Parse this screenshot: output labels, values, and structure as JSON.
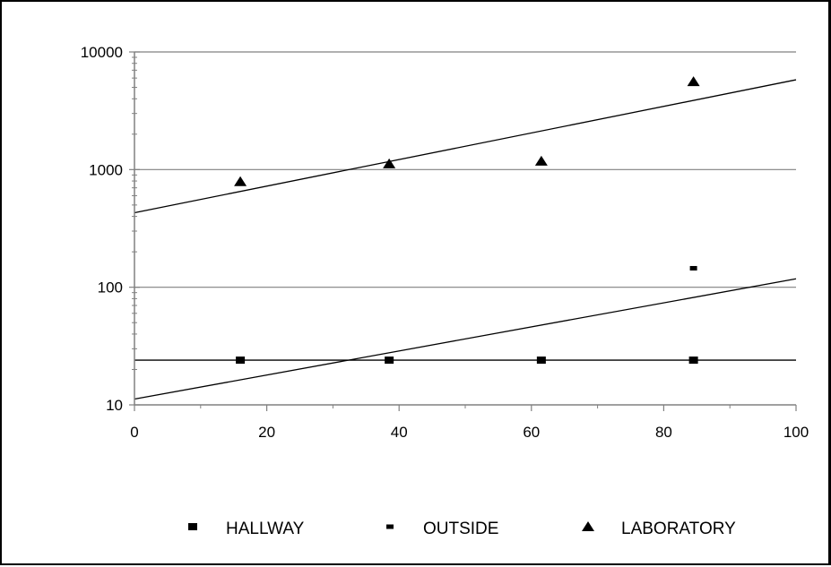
{
  "chart_data": {
    "type": "scatter",
    "title": "",
    "xlabel": "",
    "ylabel": "",
    "xlim": [
      0,
      100
    ],
    "ylim": [
      10,
      10000
    ],
    "yscale": "log",
    "x_ticks": [
      0,
      20,
      40,
      60,
      80,
      100
    ],
    "y_ticks": [
      10,
      100,
      1000,
      10000
    ],
    "x_tick_labels": [
      "0",
      "20",
      "40",
      "60",
      "80",
      "100"
    ],
    "y_tick_labels": [
      "10",
      "100",
      "1000",
      "10000"
    ],
    "grid": "horizontal",
    "legend_position": "bottom",
    "series": [
      {
        "name": "HALLWAY",
        "marker": "square",
        "x": [
          16,
          38.5,
          61.5,
          84.5
        ],
        "y": [
          24,
          24,
          24,
          24
        ]
      },
      {
        "name": "OUTSIDE",
        "marker": "dash",
        "x": [
          84.5
        ],
        "y": [
          145
        ]
      },
      {
        "name": "LABORATORY",
        "marker": "triangle",
        "x": [
          16,
          38.5,
          61.5,
          84.5
        ],
        "y": [
          790,
          1120,
          1180,
          5600
        ]
      }
    ],
    "trendlines": [
      {
        "x": [
          0,
          100
        ],
        "y": [
          24,
          24
        ]
      },
      {
        "x": [
          0,
          100
        ],
        "y": [
          11.2,
          118
        ]
      },
      {
        "x": [
          0,
          100
        ],
        "y": [
          430,
          5800
        ]
      }
    ]
  }
}
